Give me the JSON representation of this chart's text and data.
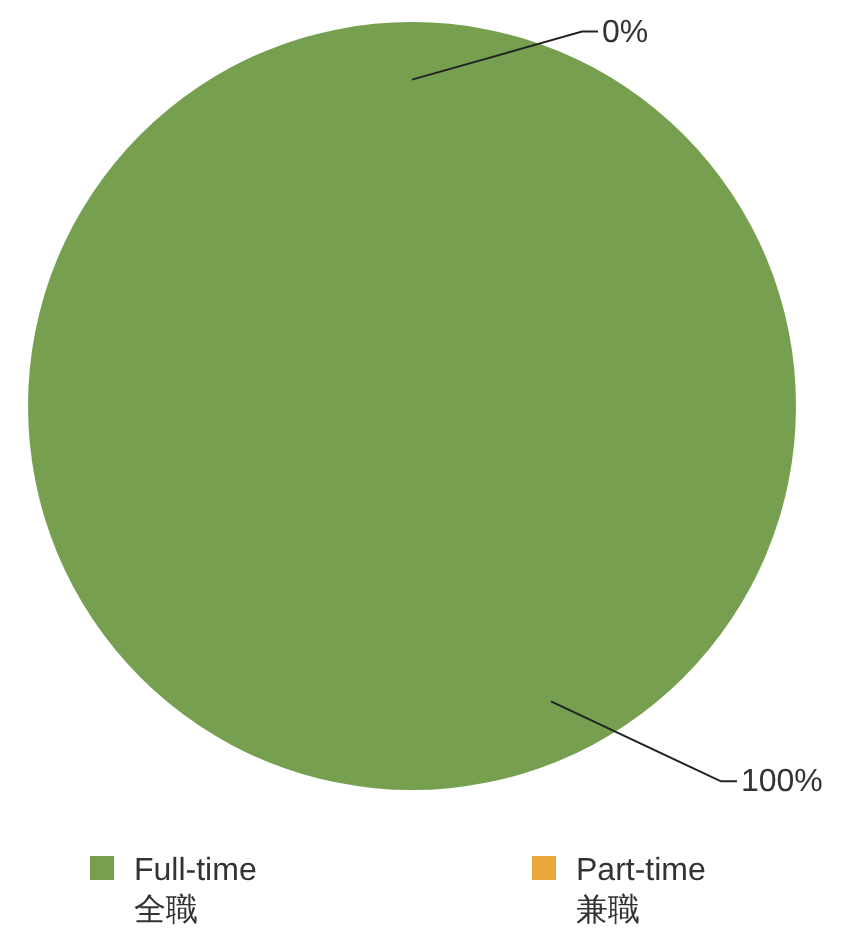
{
  "chart_data": {
    "type": "pie",
    "categories": [
      "Full-time\n全職",
      "Part-time\n兼職"
    ],
    "values": [
      100,
      0
    ],
    "colors": [
      "#76a04f",
      "#e8a838"
    ],
    "value_labels": [
      "100%",
      "0%"
    ],
    "legend": "bottom"
  }
}
